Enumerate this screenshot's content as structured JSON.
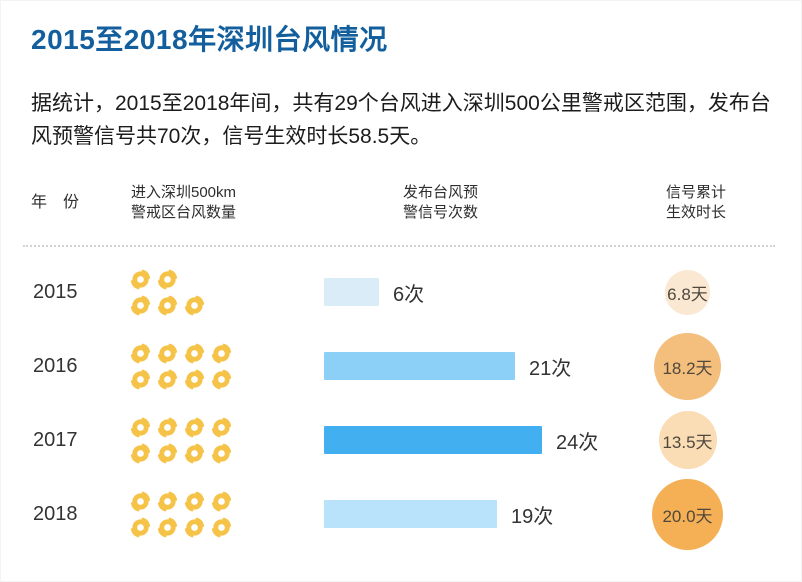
{
  "title": "2015至2018年深圳台风情况",
  "title_color": "#135f9e",
  "summary": "据统计，2015至2018年间，共有29个台风进入深圳500公里警戒区范围，发布台风预警信号共70次，信号生效时长58.5天。",
  "icon_color": "#f6c349",
  "table": {
    "headers": {
      "year": "年　份",
      "typhoon_lines": [
        "进入深圳500km",
        "警戒区台风数量"
      ],
      "warning_lines": [
        "发布台风预",
        "警信号次数"
      ],
      "duration_lines": [
        "信号累计",
        "生效时长"
      ]
    },
    "rows": [
      {
        "year": "2015",
        "typhoon_count": 5,
        "icon_rows": [
          2,
          3
        ],
        "warning_count": 6,
        "warning_label": "6次",
        "bar_color": "#d9ecf8",
        "duration_days": 6.8,
        "duration_label": "6.8天",
        "bubble_color": "#fae8d2"
      },
      {
        "year": "2016",
        "typhoon_count": 8,
        "icon_rows": [
          4,
          4
        ],
        "warning_count": 21,
        "warning_label": "21次",
        "bar_color": "#8dd0f7",
        "duration_days": 18.2,
        "duration_label": "18.2天",
        "bubble_color": "#f4be7c"
      },
      {
        "year": "2017",
        "typhoon_count": 8,
        "icon_rows": [
          4,
          4
        ],
        "warning_count": 24,
        "warning_label": "24次",
        "bar_color": "#41aff0",
        "duration_days": 13.5,
        "duration_label": "13.5天",
        "bubble_color": "#fadcb5"
      },
      {
        "year": "2018",
        "typhoon_count": 8,
        "icon_rows": [
          4,
          4
        ],
        "warning_count": 19,
        "warning_label": "19次",
        "bar_color": "#b9e3fb",
        "duration_days": 20.0,
        "duration_label": "20.0天",
        "bubble_color": "#f5af55"
      }
    ]
  },
  "chart_data": {
    "type": "table",
    "title": "2015至2018年深圳台风情况",
    "categories": [
      "2015",
      "2016",
      "2017",
      "2018"
    ],
    "series": [
      {
        "name": "进入深圳500km警戒区台风数量",
        "display": "pictogram",
        "unit": "个",
        "values": [
          5,
          8,
          8,
          8
        ]
      },
      {
        "name": "发布台风预警信号次数",
        "display": "bar",
        "unit": "次",
        "values": [
          6,
          21,
          24,
          19
        ]
      },
      {
        "name": "信号累计生效时长",
        "display": "bubble",
        "unit": "天",
        "values": [
          6.8,
          18.2,
          13.5,
          20.0
        ]
      }
    ],
    "totals": {
      "typhoons_total": 29,
      "warnings_total": 70,
      "duration_days_total": 58.5
    },
    "legend_position": "none",
    "grid": false
  }
}
